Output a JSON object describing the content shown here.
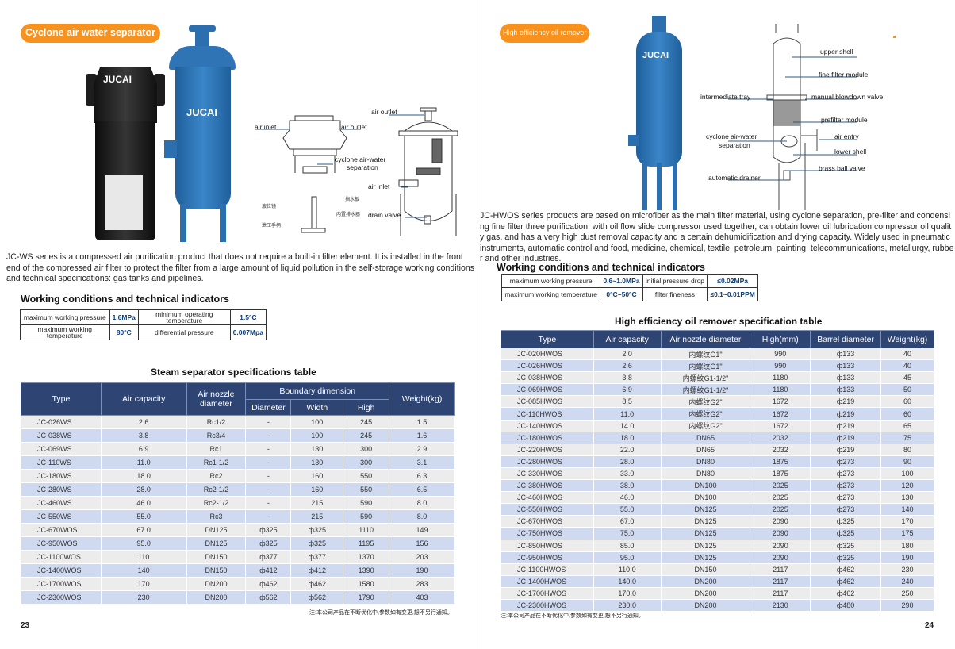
{
  "left": {
    "badge": "Cyclone air water separator",
    "brand_label": "JUCAI",
    "diagram_labels": {
      "air_inlet_1": "air inlet",
      "air_outlet_1": "air outlet",
      "air_outlet_2": "air outlet",
      "cyclone": "cyclone air-water",
      "cyclone2": "separation",
      "air_inlet_2": "air inlet",
      "drain_valve": "drain valve",
      "cn_baffle": "挡水板",
      "cn_level": "液位镜",
      "cn_drainer": "内置排水器",
      "cn_handle": "泄压手柄"
    },
    "description": "JC-WS series is a compressed air purification product that does not require a built-in filter element. It is installed in the front end of the compressed air filter to protect the filter from a large amount of liquid pollution in the self-storage working conditions and technical specifications: gas tanks and pipelines.",
    "wc_title": "Working conditions and technical indicators",
    "wc_rows": [
      [
        "maximum working pressure",
        "1.6MPa",
        "minimum operating temperature",
        "1.5°C"
      ],
      [
        "maximum working temperature",
        "80°C",
        "differential pressure",
        "0.007Mpa"
      ]
    ],
    "table_title": "Steam separator specifications table",
    "headers": {
      "type": "Type",
      "air_capacity": "Air capacity",
      "nozzle": "Air nozzle diameter",
      "boundary": "Boundary dimension",
      "diameter": "Diameter",
      "width": "Width",
      "high": "High",
      "weight": "Weight(kg)"
    },
    "rows": [
      [
        "JC-026WS",
        "2.6",
        "Rc1/2",
        "-",
        "100",
        "245",
        "1.5"
      ],
      [
        "JC-038WS",
        "3.8",
        "Rc3/4",
        "-",
        "100",
        "245",
        "1.6"
      ],
      [
        "JC-069WS",
        "6.9",
        "Rc1",
        "-",
        "130",
        "300",
        "2.9"
      ],
      [
        "JC-110WS",
        "11.0",
        "Rc1-1/2",
        "-",
        "130",
        "300",
        "3.1"
      ],
      [
        "JC-180WS",
        "18.0",
        "Rc2",
        "-",
        "160",
        "550",
        "6.3"
      ],
      [
        "JC-280WS",
        "28.0",
        "Rc2-1/2",
        "-",
        "160",
        "550",
        "6.5"
      ],
      [
        "JC-460WS",
        "46.0",
        "Rc2-1/2",
        "-",
        "215",
        "590",
        "8.0"
      ],
      [
        "JC-550WS",
        "55.0",
        "Rc3",
        "-",
        "215",
        "590",
        "8.0"
      ],
      [
        "JC-670WOS",
        "67.0",
        "DN125",
        "ф325",
        "ф325",
        "1110",
        "149"
      ],
      [
        "JC-950WOS",
        "95.0",
        "DN125",
        "ф325",
        "ф325",
        "1195",
        "156"
      ],
      [
        "JC-1100WOS",
        "110",
        "DN150",
        "ф377",
        "ф377",
        "1370",
        "203"
      ],
      [
        "JC-1400WOS",
        "140",
        "DN150",
        "ф412",
        "ф412",
        "1390",
        "190"
      ],
      [
        "JC-1700WOS",
        "170",
        "DN200",
        "ф462",
        "ф462",
        "1580",
        "283"
      ],
      [
        "JC-2300WOS",
        "230",
        "DN200",
        "ф562",
        "ф562",
        "1790",
        "403"
      ]
    ],
    "note": "注:本公司产品在不断优化中,参数如有变更,恕不另行通知。",
    "page_number": "23"
  },
  "right": {
    "badge": "High efficiency oil remover",
    "brand_label": "JUCAI",
    "diagram_labels": {
      "upper_shell": "upper shell",
      "fine_filter": "fine filter module",
      "intermediate_tray": "intermediate tray",
      "manual_blowdown": "manual blowdown valve",
      "prefilter": "prefilter module",
      "cyclone1": "cyclone air-water",
      "cyclone2": "separation",
      "air_entry": "air entry",
      "lower_shell": "lower shell",
      "brass_valve": "brass ball valve",
      "auto_drainer": "automatic drainer"
    },
    "description": "JC-HWOS series products are based on microfiber as the main filter material, using cyclone separation, pre-filter and condensing fine filter three purification, with oil flow slide compressor used together, can obtain lower oil lubrication compressor oil quality gas, and has a very high dust removal capacity and a certain dehumidification and drying capacity. Widely used in pneumatic instruments, automatic control and food, medicine, chemical, textile, petroleum, painting, telecommunications, metallurgy, rubber and other industries.",
    "wc_title": "Working conditions and technical indicators",
    "wc_rows": [
      [
        "maximum working pressure",
        "0.6~1.0MPa",
        "initial pressure drop",
        "≤0.02MPa"
      ],
      [
        "maximum working temperature",
        "0°C~50°C",
        "filter fineness",
        "≤0.1~0.01PPM"
      ]
    ],
    "table_title": "High efficiency oil remover specification table",
    "headers": [
      "Type",
      "Air capacity",
      "Air nozzle diameter",
      "High(mm)",
      "Barrel diameter",
      "Weight(kg)"
    ],
    "rows": [
      [
        "JC-020HWOS",
        "2.0",
        "内螺纹G1\"",
        "990",
        "ф133",
        "40"
      ],
      [
        "JC-026HWOS",
        "2.6",
        "内螺纹G1\"",
        "990",
        "ф133",
        "40"
      ],
      [
        "JC-038HWOS",
        "3.8",
        "内螺纹G1-1/2\"",
        "1180",
        "ф133",
        "45"
      ],
      [
        "JC-069HWOS",
        "6.9",
        "内螺纹G1-1/2\"",
        "1180",
        "ф133",
        "50"
      ],
      [
        "JC-085HWOS",
        "8.5",
        "内螺纹G2\"",
        "1672",
        "ф219",
        "60"
      ],
      [
        "JC-110HWOS",
        "11.0",
        "内螺纹G2\"",
        "1672",
        "ф219",
        "60"
      ],
      [
        "JC-140HWOS",
        "14.0",
        "内螺纹G2\"",
        "1672",
        "ф219",
        "65"
      ],
      [
        "JC-180HWOS",
        "18.0",
        "DN65",
        "2032",
        "ф219",
        "75"
      ],
      [
        "JC-220HWOS",
        "22.0",
        "DN65",
        "2032",
        "ф219",
        "80"
      ],
      [
        "JC-280HWOS",
        "28.0",
        "DN80",
        "1875",
        "ф273",
        "90"
      ],
      [
        "JC-330HWOS",
        "33.0",
        "DN80",
        "1875",
        "ф273",
        "100"
      ],
      [
        "JC-380HWOS",
        "38.0",
        "DN100",
        "2025",
        "ф273",
        "120"
      ],
      [
        "JC-460HWOS",
        "46.0",
        "DN100",
        "2025",
        "ф273",
        "130"
      ],
      [
        "JC-550HWOS",
        "55.0",
        "DN125",
        "2025",
        "ф273",
        "140"
      ],
      [
        "JC-670HWOS",
        "67.0",
        "DN125",
        "2090",
        "ф325",
        "170"
      ],
      [
        "JC-750HWOS",
        "75.0",
        "DN125",
        "2090",
        "ф325",
        "175"
      ],
      [
        "JC-850HWOS",
        "85.0",
        "DN125",
        "2090",
        "ф325",
        "180"
      ],
      [
        "JC-950HWOS",
        "95.0",
        "DN125",
        "2090",
        "ф325",
        "190"
      ],
      [
        "JC-1100HWOS",
        "110.0",
        "DN150",
        "2117",
        "ф462",
        "230"
      ],
      [
        "JC-1400HWOS",
        "140.0",
        "DN200",
        "2117",
        "ф462",
        "240"
      ],
      [
        "JC-1700HWOS",
        "170.0",
        "DN200",
        "2117",
        "ф462",
        "250"
      ],
      [
        "JC-2300HWOS",
        "230.0",
        "DN200",
        "2130",
        "ф480",
        "290"
      ]
    ],
    "note": "注:本公司产品在不断优化中,参数如有变更,恕不另行通知。",
    "page_number": "24"
  },
  "colors": {
    "accent": "#f7921e",
    "table_header": "#2e4472",
    "row_alt": "#cfdaf0",
    "row": "#ececec",
    "tank_blue": "#2f74b5"
  }
}
